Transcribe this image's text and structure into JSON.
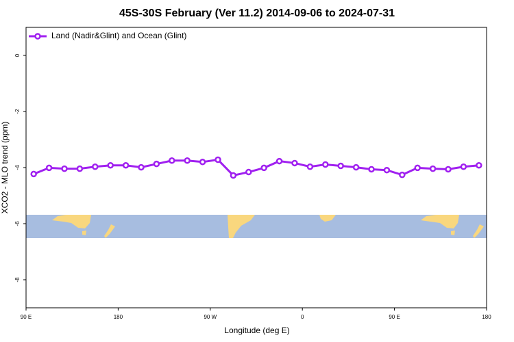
{
  "chart_data": {
    "type": "line",
    "title": "45S-30S February (Ver 11.2)   2014-09-06 to 2024-07-31",
    "x_label": "Longitude (deg E)",
    "y_label": "XCO2 - MLO trend (ppm)",
    "xlim": [
      90,
      540
    ],
    "xticks": [
      {
        "value": 90,
        "label": "90 E"
      },
      {
        "value": 180,
        "label": "180"
      },
      {
        "value": 270,
        "label": "90 W"
      },
      {
        "value": 360,
        "label": "0"
      },
      {
        "value": 450,
        "label": "90 E"
      },
      {
        "value": 540,
        "label": "180"
      }
    ],
    "ylim": [
      -9,
      1
    ],
    "yticks": [
      0,
      -2,
      -4,
      -6,
      -8
    ],
    "legend_position": "upper-left",
    "series": [
      {
        "name": "Land (Nadir&Glint) and Ocean (Glint)",
        "color": "#a020f0",
        "x": [
          97.5,
          112.5,
          127.5,
          142.5,
          157.5,
          172.5,
          187.5,
          202.5,
          217.5,
          232.5,
          247.5,
          262.5,
          277.5,
          292.5,
          307.5,
          322.5,
          337.5,
          352.5,
          367.5,
          382.5,
          397.5,
          412.5,
          427.5,
          442.5,
          457.5,
          472.5,
          487.5,
          502.5,
          517.5,
          532.5
        ],
        "values": [
          -4.23,
          -4.01,
          -4.04,
          -4.04,
          -3.97,
          -3.92,
          -3.92,
          -3.99,
          -3.87,
          -3.75,
          -3.75,
          -3.8,
          -3.72,
          -4.28,
          -4.16,
          -4.01,
          -3.77,
          -3.84,
          -3.97,
          -3.89,
          -3.94,
          -3.99,
          -4.06,
          -4.09,
          -4.26,
          -4.01,
          -4.04,
          -4.06,
          -3.97,
          -3.92
        ]
      }
    ]
  }
}
